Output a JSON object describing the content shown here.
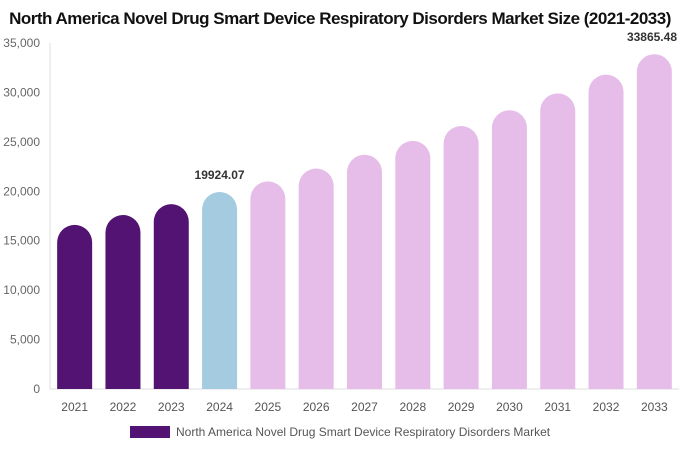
{
  "chart_data": {
    "type": "bar",
    "title": "North America Novel Drug Smart Device Respiratory Disorders Market Size (2021-2033)",
    "categories": [
      "2021",
      "2022",
      "2023",
      "2024",
      "2025",
      "2026",
      "2027",
      "2028",
      "2029",
      "2030",
      "2031",
      "2032",
      "2033"
    ],
    "series": [
      {
        "name": "North America Novel Drug Smart Device Respiratory Disorders Market",
        "values": [
          16600,
          17600,
          18700,
          19924.07,
          21000,
          22300,
          23700,
          25100,
          26600,
          28200,
          29900,
          31800,
          33865.48
        ]
      }
    ],
    "data_labels": {
      "3": "19924.07",
      "12": "33865.48"
    },
    "yticks": [
      "0",
      "5,000",
      "10,000",
      "15,000",
      "20,000",
      "25,000",
      "30,000",
      "35,000"
    ],
    "ylim": [
      0,
      35000
    ],
    "grid": false,
    "legend": "bottom",
    "colors": {
      "historical": "#531372",
      "current": "#a4cbe0",
      "forecast": "#e6bde9"
    }
  }
}
